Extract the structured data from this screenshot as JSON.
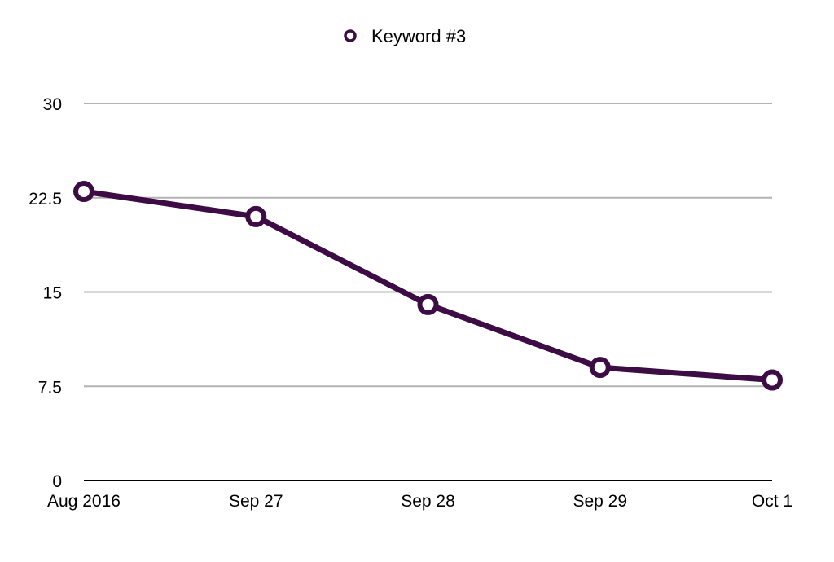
{
  "chart_data": {
    "type": "line",
    "title": "",
    "xlabel": "",
    "ylabel": "",
    "categories": [
      "Aug 2016",
      "Sep 27",
      "Sep 28",
      "Sep 29",
      "Oct 1"
    ],
    "series": [
      {
        "name": "Keyword #3",
        "values": [
          23,
          21,
          14,
          9,
          8
        ]
      }
    ],
    "ylim": [
      0,
      30
    ],
    "yticks": [
      0,
      7.5,
      15,
      22.5,
      30
    ],
    "ytick_labels": [
      "0",
      "7.5",
      "15",
      "22.5",
      "30"
    ],
    "grid": true,
    "legend_position": "top-center",
    "colors": {
      "series": "#3d0c45",
      "grid": "#b3b3b3",
      "axis": "#000000",
      "marker_fill": "#ffffff"
    }
  }
}
